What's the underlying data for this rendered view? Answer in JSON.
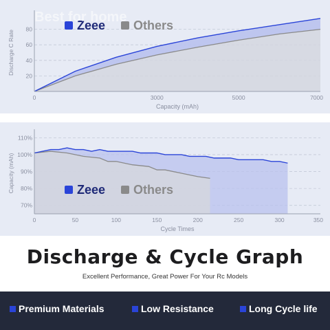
{
  "watermark": "Best for home",
  "colors": {
    "zeee": "#2a44d8",
    "others": "#8a8a8a",
    "zeee_fill": "#b9c2ee",
    "others_fill": "#d3d6df",
    "bar": "#23293a"
  },
  "chart_data": [
    {
      "type": "line",
      "ylabel": "Discharge C Rate",
      "xlabel": "Capacity (mAh)",
      "xlim": [
        0,
        7000
      ],
      "ylim": [
        0,
        100
      ],
      "x_ticks": [
        "0",
        "3000",
        "5000",
        "7000"
      ],
      "x_tick_values": [
        0,
        3000,
        5000,
        7000
      ],
      "y_ticks": [
        "20",
        "40",
        "60",
        "80"
      ],
      "y_tick_values": [
        20,
        40,
        60,
        80
      ],
      "grid": true,
      "legend_position": "top-left",
      "series": [
        {
          "name": "Zeee",
          "x": [
            0,
            1000,
            2000,
            3000,
            4000,
            5000,
            6000,
            7000
          ],
          "values": [
            0,
            26,
            44,
            58,
            69,
            78,
            86,
            94
          ]
        },
        {
          "name": "Others",
          "x": [
            0,
            1000,
            2000,
            3000,
            4000,
            5000,
            6000,
            7000
          ],
          "values": [
            0,
            20,
            35,
            47,
            57,
            66,
            74,
            80
          ]
        }
      ]
    },
    {
      "type": "line",
      "ylabel": "Capacity (mAh)",
      "xlabel": "Cycle Times",
      "xlim": [
        0,
        350
      ],
      "ylim": [
        65,
        113
      ],
      "x_ticks": [
        "0",
        "50",
        "100",
        "150",
        "200",
        "250",
        "300",
        "350"
      ],
      "x_tick_values": [
        0,
        50,
        100,
        150,
        200,
        250,
        300,
        350
      ],
      "y_ticks": [
        "110%",
        "100%",
        "90%",
        "80%",
        "70%"
      ],
      "y_tick_values": [
        110,
        100,
        90,
        80,
        70
      ],
      "grid": true,
      "legend_position": "center-left",
      "series": [
        {
          "name": "Zeee",
          "x": [
            0,
            20,
            30,
            40,
            50,
            60,
            70,
            80,
            90,
            100,
            110,
            120,
            130,
            140,
            150,
            160,
            170,
            180,
            190,
            200,
            210,
            220,
            230,
            240,
            250,
            260,
            270,
            280,
            290,
            300,
            310
          ],
          "values": [
            101,
            103,
            103,
            104,
            103,
            103,
            102,
            103,
            102,
            102,
            102,
            102,
            101,
            101,
            101,
            100,
            100,
            100,
            99,
            99,
            99,
            98,
            98,
            98,
            97,
            97,
            97,
            97,
            96,
            96,
            95
          ]
        },
        {
          "name": "Others",
          "x": [
            0,
            20,
            40,
            60,
            80,
            90,
            100,
            120,
            140,
            150,
            160,
            180,
            200,
            215
          ],
          "values": [
            101,
            102,
            101,
            99,
            98,
            96,
            96,
            94,
            93,
            91,
            91,
            89,
            87,
            86
          ]
        }
      ]
    }
  ],
  "heading": {
    "title": "Discharge & Cycle Graph",
    "subtitle": "Excellent Performance, Great Power For Your Rc Models"
  },
  "features": [
    {
      "label": "Premium Materials"
    },
    {
      "label": "Low Resistance"
    },
    {
      "label": "Long Cycle life"
    }
  ]
}
